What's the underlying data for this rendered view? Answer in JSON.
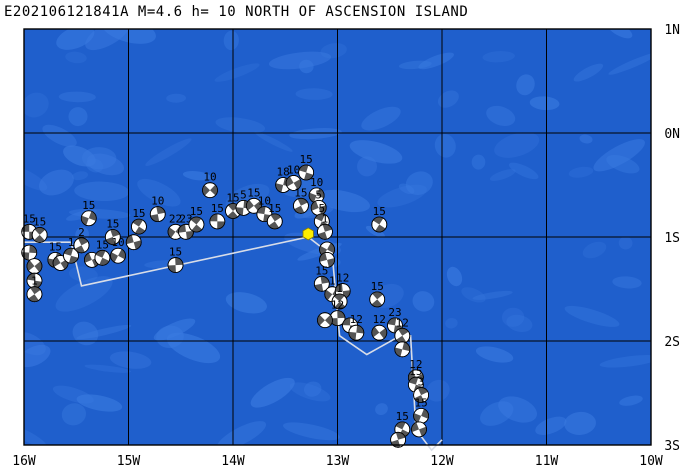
{
  "title": "E202106121841A M=4.6 h= 10 NORTH OF ASCENSION ISLAND",
  "axes": {
    "lon_ticks": [
      "16W",
      "15W",
      "14W",
      "13W",
      "12W",
      "11W",
      "10W"
    ],
    "lat_ticks": [
      "1N",
      "0N",
      "1S",
      "2S",
      "3S"
    ],
    "lon_range": [
      -16,
      -10
    ],
    "lat_range": [
      -3,
      1
    ]
  },
  "colors": {
    "ocean": "#1f5fcc",
    "ocean_shallow": "#3a7ae0",
    "grid": "#000000",
    "plate_boundary": "#d8dde8",
    "event": "#ffee00",
    "beachball_dark": "#555555",
    "beachball_light": "#ffffff"
  },
  "main_event": {
    "lon": -13.28,
    "lat": -0.97
  },
  "plate_boundary": [
    [
      -16.0,
      -1.05
    ],
    [
      -15.55,
      -1.05
    ],
    [
      -15.45,
      -1.47
    ],
    [
      -13.28,
      -1.0
    ],
    [
      -13.05,
      -1.18
    ],
    [
      -12.98,
      -1.95
    ],
    [
      -12.72,
      -2.13
    ],
    [
      -12.4,
      -1.95
    ],
    [
      -12.3,
      -1.95
    ],
    [
      -12.25,
      -2.85
    ],
    [
      -12.1,
      -3.05
    ],
    [
      -12.0,
      -2.95
    ]
  ],
  "mechanisms": [
    {
      "lon": -15.95,
      "lat": -0.95,
      "label": "15"
    },
    {
      "lon": -15.85,
      "lat": -0.98,
      "label": "15"
    },
    {
      "lon": -15.95,
      "lat": -1.15,
      "label": ""
    },
    {
      "lon": -15.9,
      "lat": -1.28,
      "label": ""
    },
    {
      "lon": -15.9,
      "lat": -1.42,
      "label": ""
    },
    {
      "lon": -15.9,
      "lat": -1.55,
      "label": "1"
    },
    {
      "lon": -15.7,
      "lat": -1.22,
      "label": "15"
    },
    {
      "lon": -15.65,
      "lat": -1.25,
      "label": ""
    },
    {
      "lon": -15.55,
      "lat": -1.18,
      "label": "1"
    },
    {
      "lon": -15.45,
      "lat": -1.08,
      "label": "2"
    },
    {
      "lon": -15.38,
      "lat": -0.82,
      "label": "15"
    },
    {
      "lon": -15.35,
      "lat": -1.22,
      "label": ""
    },
    {
      "lon": -15.25,
      "lat": -1.2,
      "label": "15"
    },
    {
      "lon": -15.15,
      "lat": -1.0,
      "label": "15"
    },
    {
      "lon": -15.1,
      "lat": -1.18,
      "label": "10"
    },
    {
      "lon": -14.95,
      "lat": -1.05,
      "label": ""
    },
    {
      "lon": -14.9,
      "lat": -0.9,
      "label": "15"
    },
    {
      "lon": -14.72,
      "lat": -0.78,
      "label": "10"
    },
    {
      "lon": -14.55,
      "lat": -0.95,
      "label": "22"
    },
    {
      "lon": -14.45,
      "lat": -0.95,
      "label": "23"
    },
    {
      "lon": -14.35,
      "lat": -0.88,
      "label": "15"
    },
    {
      "lon": -14.55,
      "lat": -1.27,
      "label": "15"
    },
    {
      "lon": -14.22,
      "lat": -0.55,
      "label": "10"
    },
    {
      "lon": -14.15,
      "lat": -0.85,
      "label": "15"
    },
    {
      "lon": -14.0,
      "lat": -0.75,
      "label": "15"
    },
    {
      "lon": -13.9,
      "lat": -0.72,
      "label": "5"
    },
    {
      "lon": -13.8,
      "lat": -0.7,
      "label": "15"
    },
    {
      "lon": -13.7,
      "lat": -0.78,
      "label": "10"
    },
    {
      "lon": -13.6,
      "lat": -0.85,
      "label": "15"
    },
    {
      "lon": -13.52,
      "lat": -0.5,
      "label": "18"
    },
    {
      "lon": -13.42,
      "lat": -0.48,
      "label": "10"
    },
    {
      "lon": -13.3,
      "lat": -0.38,
      "label": "15"
    },
    {
      "lon": -13.35,
      "lat": -0.7,
      "label": "15"
    },
    {
      "lon": -13.2,
      "lat": -0.6,
      "label": "10"
    },
    {
      "lon": -13.18,
      "lat": -0.72,
      "label": "5"
    },
    {
      "lon": -13.15,
      "lat": -0.85,
      "label": "5"
    },
    {
      "lon": -13.12,
      "lat": -0.95,
      "label": "1"
    },
    {
      "lon": -13.1,
      "lat": -1.12,
      "label": ""
    },
    {
      "lon": -13.1,
      "lat": -1.22,
      "label": ""
    },
    {
      "lon": -12.6,
      "lat": -0.88,
      "label": "15"
    },
    {
      "lon": -13.15,
      "lat": -1.45,
      "label": "15"
    },
    {
      "lon": -13.05,
      "lat": -1.55,
      "label": "1"
    },
    {
      "lon": -12.95,
      "lat": -1.52,
      "label": "12"
    },
    {
      "lon": -12.98,
      "lat": -1.62,
      "label": "1"
    },
    {
      "lon": -13.0,
      "lat": -1.78,
      "label": "12"
    },
    {
      "lon": -13.12,
      "lat": -1.8,
      "label": ""
    },
    {
      "lon": -12.88,
      "lat": -1.85,
      "label": ""
    },
    {
      "lon": -12.62,
      "lat": -1.6,
      "label": "15"
    },
    {
      "lon": -12.82,
      "lat": -1.92,
      "label": "12"
    },
    {
      "lon": -12.6,
      "lat": -1.92,
      "label": "12"
    },
    {
      "lon": -12.45,
      "lat": -1.85,
      "label": "23"
    },
    {
      "lon": -12.38,
      "lat": -1.95,
      "label": "12"
    },
    {
      "lon": -12.38,
      "lat": -2.08,
      "label": ""
    },
    {
      "lon": -12.25,
      "lat": -2.35,
      "label": "12"
    },
    {
      "lon": -12.25,
      "lat": -2.42,
      "label": "15"
    },
    {
      "lon": -12.2,
      "lat": -2.52,
      "label": "3"
    },
    {
      "lon": -12.2,
      "lat": -2.72,
      "label": "15"
    },
    {
      "lon": -12.22,
      "lat": -2.85,
      "label": ""
    },
    {
      "lon": -12.38,
      "lat": -2.85,
      "label": "15"
    },
    {
      "lon": -12.42,
      "lat": -2.95,
      "label": ""
    }
  ]
}
